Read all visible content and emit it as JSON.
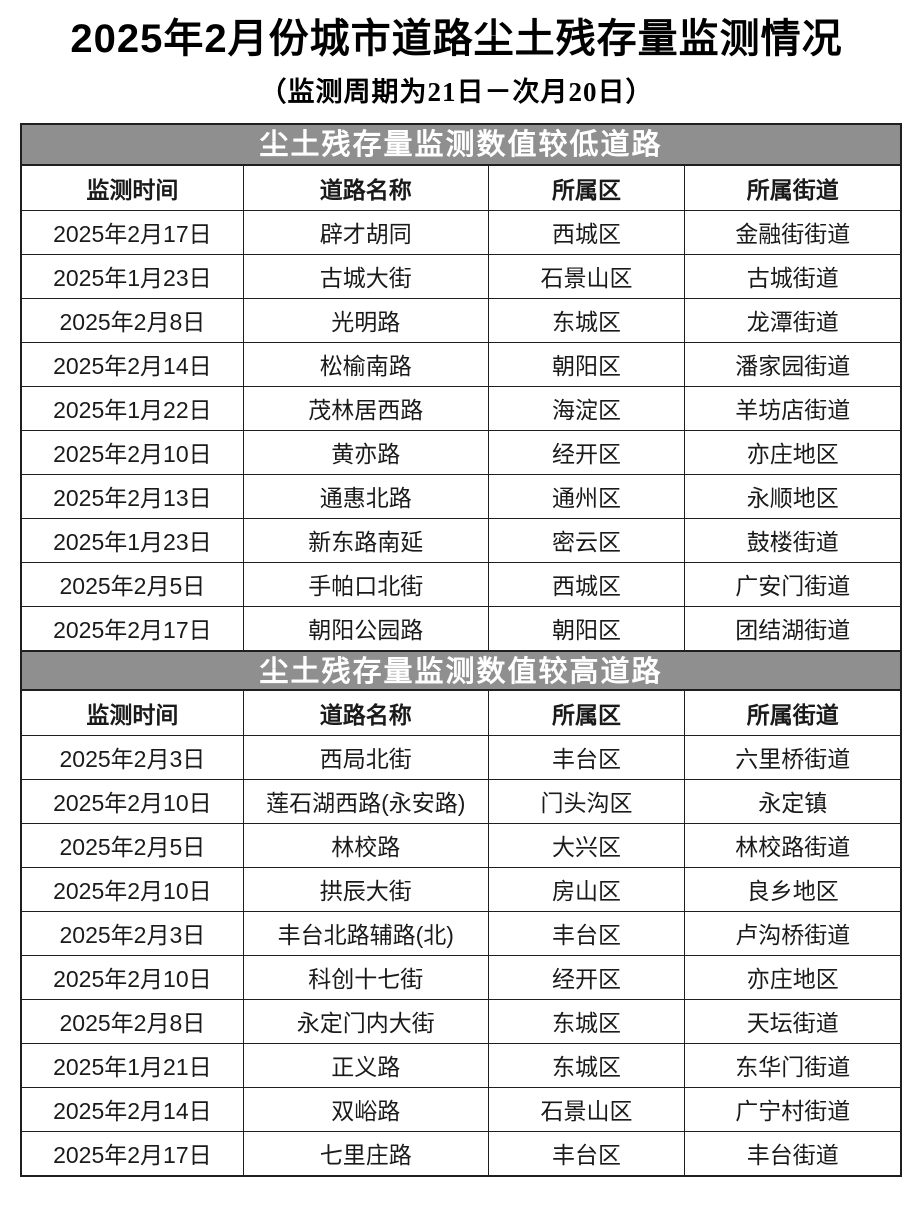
{
  "title": "2025年2月份城市道路尘土残存量监测情况",
  "subtitle": "（监测周期为21日－次月20日）",
  "columns": [
    "监测时间",
    "道路名称",
    "所属区",
    "所属街道"
  ],
  "sections": [
    {
      "banner": "尘土残存量监测数值较低道路",
      "rows": [
        [
          "2025年2月17日",
          "辟才胡同",
          "西城区",
          "金融街街道"
        ],
        [
          "2025年1月23日",
          "古城大街",
          "石景山区",
          "古城街道"
        ],
        [
          "2025年2月8日",
          "光明路",
          "东城区",
          "龙潭街道"
        ],
        [
          "2025年2月14日",
          "松榆南路",
          "朝阳区",
          "潘家园街道"
        ],
        [
          "2025年1月22日",
          "茂林居西路",
          "海淀区",
          "羊坊店街道"
        ],
        [
          "2025年2月10日",
          "黄亦路",
          "经开区",
          "亦庄地区"
        ],
        [
          "2025年2月13日",
          "通惠北路",
          "通州区",
          "永顺地区"
        ],
        [
          "2025年1月23日",
          "新东路南延",
          "密云区",
          "鼓楼街道"
        ],
        [
          "2025年2月5日",
          "手帕口北街",
          "西城区",
          "广安门街道"
        ],
        [
          "2025年2月17日",
          "朝阳公园路",
          "朝阳区",
          "团结湖街道"
        ]
      ]
    },
    {
      "banner": "尘土残存量监测数值较高道路",
      "rows": [
        [
          "2025年2月3日",
          "西局北街",
          "丰台区",
          "六里桥街道"
        ],
        [
          "2025年2月10日",
          "莲石湖西路(永安路)",
          "门头沟区",
          "永定镇"
        ],
        [
          "2025年2月5日",
          "林校路",
          "大兴区",
          "林校路街道"
        ],
        [
          "2025年2月10日",
          "拱辰大街",
          "房山区",
          "良乡地区"
        ],
        [
          "2025年2月3日",
          "丰台北路辅路(北)",
          "丰台区",
          "卢沟桥街道"
        ],
        [
          "2025年2月10日",
          "科创十七街",
          "经开区",
          "亦庄地区"
        ],
        [
          "2025年2月8日",
          "永定门内大街",
          "东城区",
          "天坛街道"
        ],
        [
          "2025年1月21日",
          "正义路",
          "东城区",
          "东华门街道"
        ],
        [
          "2025年2月14日",
          "双峪路",
          "石景山区",
          "广宁村街道"
        ],
        [
          "2025年2月17日",
          "七里庄路",
          "丰台区",
          "丰台街道"
        ]
      ]
    }
  ],
  "colors": {
    "banner_bg": "#8f8f8f",
    "banner_text": "#ffffff",
    "border": "#1f1f1f",
    "text": "#1a1a1a",
    "page_bg": "#ffffff"
  }
}
